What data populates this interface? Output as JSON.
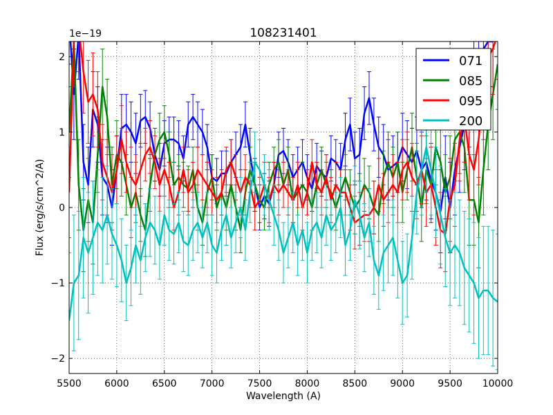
{
  "chart_data": {
    "type": "line",
    "title": "108231401",
    "xlabel": "Wavelength (A)",
    "ylabel": "Flux (erg/s/cm^2/A)",
    "y_multiplier_label": "1e−19",
    "xlim": [
      5500,
      10000
    ],
    "ylim": [
      -2.2,
      2.2
    ],
    "xticks": [
      5500,
      6000,
      6500,
      7000,
      7500,
      8000,
      8500,
      9000,
      9500,
      10000
    ],
    "yticks": [
      -2,
      -1,
      0,
      1,
      2
    ],
    "ytick_labels": [
      "−2",
      "−1",
      "0",
      "1",
      "2"
    ],
    "grid": true,
    "legend_position": "top-right",
    "series": [
      {
        "name": "071",
        "color": "#0000ff",
        "x": [
          5500,
          5550,
          5600,
          5650,
          5700,
          5750,
          5800,
          5850,
          5900,
          5950,
          6000,
          6050,
          6100,
          6150,
          6200,
          6250,
          6300,
          6350,
          6400,
          6450,
          6500,
          6550,
          6600,
          6650,
          6700,
          6750,
          6800,
          6850,
          6900,
          6950,
          7000,
          7050,
          7100,
          7150,
          7200,
          7250,
          7300,
          7350,
          7400,
          7450,
          7500,
          7550,
          7600,
          7650,
          7700,
          7750,
          7800,
          7850,
          7900,
          7950,
          8000,
          8050,
          8100,
          8150,
          8200,
          8250,
          8300,
          8350,
          8400,
          8450,
          8500,
          8550,
          8600,
          8650,
          8700,
          8750,
          8800,
          8850,
          8900,
          8950,
          9000,
          9050,
          9100,
          9150,
          9200,
          9250,
          9300,
          9350,
          9400,
          9450,
          9500,
          9550,
          9600,
          9650,
          9700,
          9750,
          9800,
          9850,
          9900,
          9950,
          10000
        ],
        "y": [
          2.5,
          1.5,
          2.3,
          0.6,
          0.3,
          1.3,
          1.1,
          0.4,
          0.3,
          0.0,
          0.5,
          1.05,
          1.1,
          1.0,
          0.85,
          1.15,
          1.2,
          1.05,
          0.7,
          0.5,
          0.85,
          0.9,
          0.9,
          0.85,
          0.65,
          1.1,
          1.2,
          1.1,
          1.0,
          0.8,
          0.4,
          0.35,
          0.45,
          0.45,
          0.6,
          0.7,
          0.8,
          1.1,
          0.7,
          0.3,
          0.0,
          0.15,
          0.05,
          0.3,
          0.7,
          0.75,
          0.6,
          0.4,
          0.5,
          0.6,
          0.4,
          0.25,
          0.55,
          0.45,
          0.4,
          0.65,
          0.6,
          0.5,
          0.9,
          1.1,
          0.65,
          0.7,
          1.25,
          1.45,
          1.1,
          0.8,
          0.7,
          0.5,
          0.55,
          0.6,
          0.8,
          0.7,
          0.6,
          0.75,
          0.5,
          0.6,
          0.35,
          0.2,
          -0.05,
          0.4,
          0.0,
          0.5,
          0.8,
          1.1,
          1.4,
          1.7,
          1.9,
          2.1,
          2.2,
          2.2,
          2.3
        ],
        "yerr": [
          0.6,
          0.6,
          0.6,
          0.5,
          0.5,
          0.5,
          0.5,
          0.5,
          0.5,
          0.5,
          0.45,
          0.45,
          0.4,
          0.4,
          0.4,
          0.35,
          0.35,
          0.35,
          0.35,
          0.35,
          0.3,
          0.3,
          0.3,
          0.3,
          0.3,
          0.3,
          0.3,
          0.3,
          0.3,
          0.3,
          0.3,
          0.3,
          0.3,
          0.3,
          0.3,
          0.3,
          0.3,
          0.3,
          0.35,
          0.35,
          0.3,
          0.3,
          0.3,
          0.3,
          0.3,
          0.3,
          0.3,
          0.3,
          0.3,
          0.3,
          0.3,
          0.3,
          0.3,
          0.3,
          0.3,
          0.3,
          0.3,
          0.35,
          0.35,
          0.35,
          0.35,
          0.35,
          0.35,
          0.35,
          0.35,
          0.4,
          0.4,
          0.4,
          0.4,
          0.4,
          0.45,
          0.45,
          0.45,
          0.45,
          0.5,
          0.5,
          0.5,
          0.5,
          0.55,
          0.55,
          0.6,
          0.6,
          0.6,
          0.6,
          0.6,
          0.6,
          0.6,
          0.6,
          0.6,
          0.6,
          0.6
        ]
      },
      {
        "name": "085",
        "color": "#008000",
        "x": [
          5500,
          5550,
          5600,
          5650,
          5700,
          5750,
          5800,
          5850,
          5900,
          5950,
          6000,
          6050,
          6100,
          6150,
          6200,
          6250,
          6300,
          6350,
          6400,
          6450,
          6500,
          6550,
          6600,
          6650,
          6700,
          6750,
          6800,
          6850,
          6900,
          6950,
          7000,
          7050,
          7100,
          7150,
          7200,
          7250,
          7300,
          7350,
          7400,
          7450,
          7500,
          7550,
          7600,
          7650,
          7700,
          7750,
          7800,
          7850,
          7900,
          7950,
          8000,
          8050,
          8100,
          8150,
          8200,
          8250,
          8300,
          8350,
          8400,
          8450,
          8500,
          8550,
          8600,
          8650,
          8700,
          8750,
          8800,
          8850,
          8900,
          8950,
          9000,
          9050,
          9100,
          9150,
          9200,
          9250,
          9300,
          9350,
          9400,
          9450,
          9500,
          9550,
          9600,
          9650,
          9700,
          9750,
          9800,
          9850,
          9900,
          9950,
          10000
        ],
        "y": [
          1.0,
          2.2,
          0.3,
          -0.3,
          0.1,
          -0.2,
          0.7,
          1.6,
          1.2,
          0.3,
          0.7,
          0.6,
          0.3,
          0.0,
          0.2,
          -0.1,
          -0.3,
          0.3,
          0.7,
          0.9,
          1.0,
          0.7,
          0.3,
          0.4,
          0.3,
          0.25,
          0.5,
          0.0,
          -0.2,
          0.2,
          0.4,
          0.0,
          0.2,
          0.0,
          0.3,
          0.0,
          -0.3,
          0.2,
          0.5,
          0.3,
          0.1,
          0.0,
          0.3,
          0.5,
          0.6,
          0.3,
          0.5,
          0.1,
          0.2,
          0.3,
          0.2,
          0.0,
          0.3,
          0.5,
          0.3,
          0.2,
          0.0,
          0.2,
          0.4,
          0.2,
          0.0,
          0.1,
          0.3,
          0.2,
          0.0,
          -0.1,
          0.4,
          0.6,
          0.4,
          0.6,
          0.2,
          0.5,
          0.8,
          0.4,
          0.0,
          0.5,
          0.3,
          0.8,
          0.6,
          0.2,
          0.4,
          0.9,
          1.0,
          0.8,
          0.1,
          0.1,
          -0.2,
          0.5,
          1.1,
          1.5,
          1.9
        ],
        "yerr": [
          0.6,
          0.6,
          0.6,
          0.55,
          0.55,
          0.55,
          0.5,
          0.5,
          0.5,
          0.5,
          0.45,
          0.45,
          0.4,
          0.4,
          0.4,
          0.35,
          0.35,
          0.35,
          0.35,
          0.35,
          0.35,
          0.3,
          0.3,
          0.3,
          0.3,
          0.3,
          0.3,
          0.3,
          0.3,
          0.3,
          0.3,
          0.3,
          0.3,
          0.3,
          0.3,
          0.3,
          0.3,
          0.3,
          0.3,
          0.3,
          0.3,
          0.3,
          0.3,
          0.3,
          0.3,
          0.3,
          0.3,
          0.3,
          0.3,
          0.3,
          0.3,
          0.3,
          0.3,
          0.3,
          0.3,
          0.3,
          0.3,
          0.3,
          0.3,
          0.3,
          0.35,
          0.35,
          0.35,
          0.35,
          0.35,
          0.35,
          0.35,
          0.4,
          0.4,
          0.4,
          0.4,
          0.4,
          0.45,
          0.45,
          0.45,
          0.45,
          0.5,
          0.5,
          0.5,
          0.5,
          0.55,
          0.55,
          0.55,
          0.6,
          0.6,
          0.6,
          0.6,
          0.6,
          0.6,
          0.6,
          0.6
        ]
      },
      {
        "name": "095",
        "color": "#ff0000",
        "x": [
          5500,
          5550,
          5600,
          5650,
          5700,
          5750,
          5800,
          5850,
          5900,
          5950,
          6000,
          6050,
          6100,
          6150,
          6200,
          6250,
          6300,
          6350,
          6400,
          6450,
          6500,
          6550,
          6600,
          6650,
          6700,
          6750,
          6800,
          6850,
          6900,
          6950,
          7000,
          7050,
          7100,
          7150,
          7200,
          7250,
          7300,
          7350,
          7400,
          7450,
          7500,
          7550,
          7600,
          7650,
          7700,
          7750,
          7800,
          7850,
          7900,
          7950,
          8000,
          8050,
          8100,
          8150,
          8200,
          8250,
          8300,
          8350,
          8400,
          8450,
          8500,
          8550,
          8600,
          8650,
          8700,
          8750,
          8800,
          8850,
          8900,
          8950,
          9000,
          9050,
          9100,
          9150,
          9200,
          9250,
          9300,
          9350,
          9400,
          9450,
          9500,
          9550,
          9600,
          9650,
          9700,
          9750,
          9800,
          9850,
          9900,
          9950,
          10000
        ],
        "y": [
          0.2,
          2.2,
          2.4,
          1.8,
          1.4,
          1.5,
          1.3,
          0.6,
          0.4,
          0.2,
          0.5,
          0.9,
          0.6,
          0.4,
          0.3,
          0.5,
          0.7,
          0.8,
          0.6,
          0.3,
          0.5,
          0.3,
          0.0,
          0.2,
          0.5,
          0.2,
          0.3,
          0.5,
          0.4,
          0.3,
          0.2,
          0.1,
          0.2,
          0.5,
          0.6,
          0.4,
          0.2,
          0.4,
          0.3,
          0.0,
          0.1,
          0.3,
          0.1,
          0.3,
          0.2,
          0.3,
          0.2,
          0.1,
          0.3,
          0.0,
          0.2,
          0.6,
          0.3,
          0.2,
          0.4,
          0.1,
          0.3,
          0.2,
          0.2,
          0.0,
          -0.2,
          -0.15,
          -0.1,
          -0.1,
          0.0,
          0.3,
          0.1,
          0.2,
          0.3,
          0.2,
          0.5,
          0.6,
          0.4,
          0.3,
          0.5,
          0.2,
          0.3,
          0.0,
          -0.3,
          -0.35,
          0.1,
          0.3,
          0.9,
          1.2,
          0.7,
          0.5,
          0.9,
          1.5,
          2.0,
          2.1,
          2.3
        ],
        "yerr": [
          0.6,
          0.6,
          0.6,
          0.55,
          0.55,
          0.55,
          0.5,
          0.5,
          0.5,
          0.5,
          0.45,
          0.45,
          0.4,
          0.4,
          0.4,
          0.35,
          0.35,
          0.35,
          0.35,
          0.35,
          0.35,
          0.3,
          0.3,
          0.3,
          0.3,
          0.3,
          0.3,
          0.3,
          0.3,
          0.3,
          0.3,
          0.3,
          0.3,
          0.3,
          0.3,
          0.3,
          0.3,
          0.3,
          0.3,
          0.3,
          0.3,
          0.3,
          0.3,
          0.3,
          0.3,
          0.3,
          0.3,
          0.3,
          0.3,
          0.3,
          0.3,
          0.3,
          0.3,
          0.3,
          0.3,
          0.3,
          0.3,
          0.3,
          0.3,
          0.3,
          0.35,
          0.35,
          0.35,
          0.35,
          0.35,
          0.35,
          0.35,
          0.4,
          0.4,
          0.4,
          0.4,
          0.4,
          0.45,
          0.45,
          0.45,
          0.45,
          0.5,
          0.5,
          0.5,
          0.5,
          0.55,
          0.55,
          0.55,
          0.6,
          0.6,
          0.6,
          0.6,
          0.6,
          0.6,
          0.6,
          0.6
        ]
      },
      {
        "name": "200",
        "color": "#00bfbf",
        "x": [
          5500,
          5550,
          5600,
          5650,
          5700,
          5750,
          5800,
          5850,
          5900,
          5950,
          6000,
          6050,
          6100,
          6150,
          6200,
          6250,
          6300,
          6350,
          6400,
          6450,
          6500,
          6550,
          6600,
          6650,
          6700,
          6750,
          6800,
          6850,
          6900,
          6950,
          7000,
          7050,
          7100,
          7150,
          7200,
          7250,
          7300,
          7350,
          7400,
          7450,
          7500,
          7550,
          7600,
          7650,
          7700,
          7750,
          7800,
          7850,
          7900,
          7950,
          8000,
          8050,
          8100,
          8150,
          8200,
          8250,
          8300,
          8350,
          8400,
          8450,
          8500,
          8550,
          8600,
          8650,
          8700,
          8750,
          8800,
          8850,
          8900,
          8950,
          9000,
          9050,
          9100,
          9150,
          9200,
          9250,
          9300,
          9350,
          9400,
          9450,
          9500,
          9550,
          9600,
          9650,
          9700,
          9750,
          9800,
          9850,
          9900,
          9950,
          10000
        ],
        "y": [
          -1.5,
          -1.0,
          -0.9,
          -0.4,
          -0.6,
          -0.4,
          -0.2,
          -0.3,
          -0.1,
          -0.35,
          -0.5,
          -0.7,
          -1.0,
          -0.8,
          -0.5,
          -0.7,
          -0.4,
          -0.2,
          -0.3,
          -0.5,
          -0.1,
          -0.3,
          -0.35,
          -0.2,
          -0.45,
          -0.5,
          -0.3,
          -0.2,
          -0.4,
          -0.2,
          -0.5,
          -0.6,
          -0.3,
          -0.1,
          -0.4,
          -0.2,
          0.0,
          -0.3,
          0.2,
          0.6,
          0.5,
          0.3,
          0.1,
          -0.1,
          -0.3,
          -0.6,
          -0.4,
          -0.2,
          -0.5,
          -0.3,
          -0.6,
          -0.3,
          -0.2,
          -0.4,
          -0.1,
          -0.3,
          -0.2,
          0.0,
          -0.5,
          -0.3,
          0.1,
          -0.1,
          -0.4,
          -0.2,
          -0.7,
          -0.9,
          -0.6,
          -0.5,
          -0.4,
          -0.7,
          -1.0,
          -0.9,
          -0.4,
          0.2,
          0.5,
          0.8,
          0.5,
          0.2,
          -0.1,
          -0.4,
          -0.6,
          -0.5,
          -0.6,
          -0.8,
          -0.9,
          -1.0,
          -1.2,
          -1.1,
          -1.1,
          -1.2,
          -1.25
        ],
        "yerr": [
          0.9,
          0.9,
          0.85,
          0.8,
          0.8,
          0.75,
          0.7,
          0.7,
          0.65,
          0.6,
          0.55,
          0.55,
          0.5,
          0.5,
          0.5,
          0.45,
          0.45,
          0.45,
          0.45,
          0.45,
          0.4,
          0.4,
          0.4,
          0.4,
          0.4,
          0.4,
          0.4,
          0.4,
          0.4,
          0.4,
          0.4,
          0.4,
          0.4,
          0.4,
          0.4,
          0.4,
          0.4,
          0.4,
          0.4,
          0.4,
          0.4,
          0.4,
          0.4,
          0.4,
          0.4,
          0.4,
          0.4,
          0.4,
          0.4,
          0.4,
          0.4,
          0.4,
          0.4,
          0.4,
          0.4,
          0.4,
          0.4,
          0.4,
          0.4,
          0.4,
          0.45,
          0.45,
          0.45,
          0.45,
          0.45,
          0.45,
          0.5,
          0.5,
          0.5,
          0.5,
          0.55,
          0.55,
          0.55,
          0.55,
          0.6,
          0.6,
          0.6,
          0.6,
          0.65,
          0.65,
          0.7,
          0.7,
          0.7,
          0.75,
          0.75,
          0.8,
          0.8,
          0.85,
          0.85,
          0.9,
          0.9
        ]
      }
    ]
  }
}
